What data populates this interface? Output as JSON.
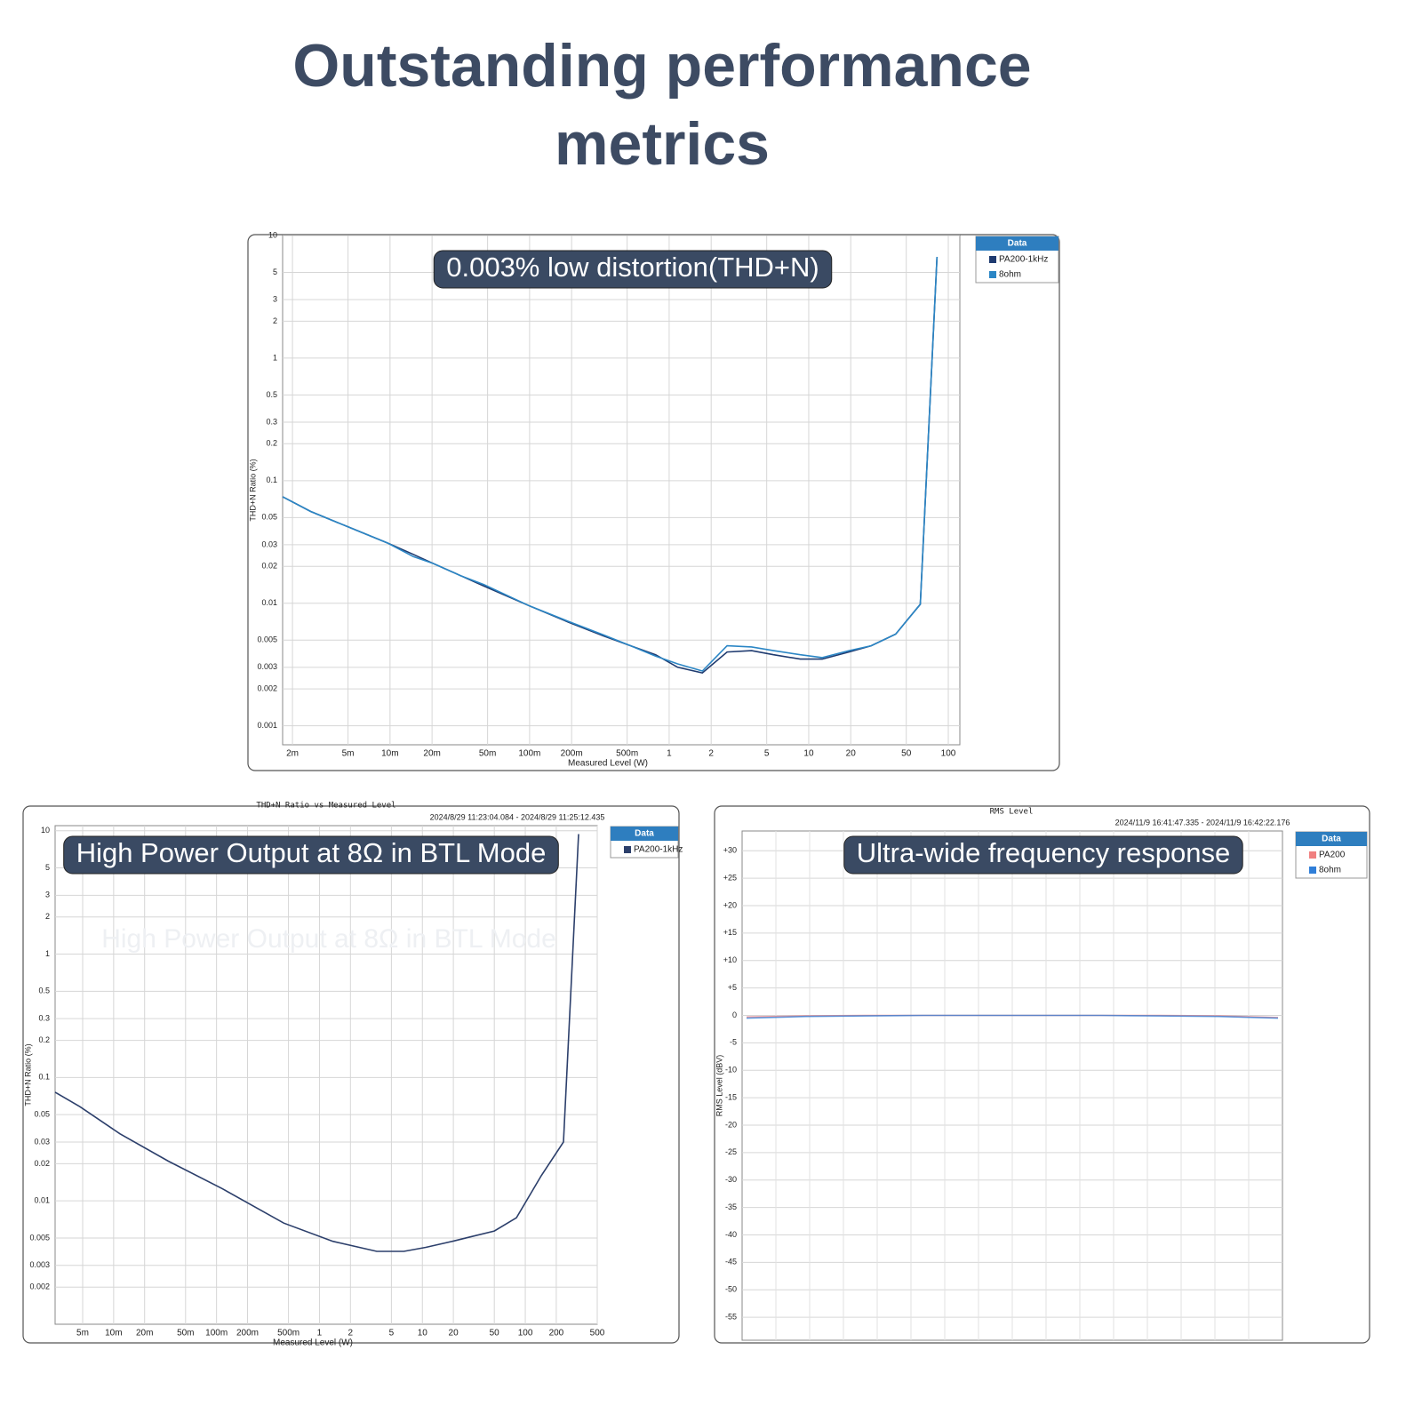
{
  "header": {
    "title": "Outstanding performance metrics"
  },
  "chart_data": [
    {
      "type": "line",
      "annotation": "0.003% low distortion(THD+N)",
      "x_label": "Measured Level (W)",
      "y_label": "THD+N Ratio (%)",
      "legend_title": "Data",
      "log_x": true,
      "log_y": true,
      "grid": true,
      "xlim": [
        0.0017,
        121
      ],
      "ylim": [
        0.0007,
        10
      ],
      "xticks": [
        {
          "value": 0.002,
          "label": "2m"
        },
        {
          "value": 0.005,
          "label": "5m"
        },
        {
          "value": 0.01,
          "label": "10m"
        },
        {
          "value": 0.02,
          "label": "20m"
        },
        {
          "value": 0.05,
          "label": "50m"
        },
        {
          "value": 0.1,
          "label": "100m"
        },
        {
          "value": 0.2,
          "label": "200m"
        },
        {
          "value": 0.5,
          "label": "500m"
        },
        1,
        2,
        5,
        10,
        20,
        50,
        100
      ],
      "yticks": [
        10,
        5,
        3,
        2,
        1,
        0.5,
        0.3,
        0.2,
        0.1,
        0.05,
        0.03,
        0.02,
        0.01,
        0.005,
        0.003,
        0.002,
        0.001
      ],
      "series": [
        {
          "name": "PA200-1kHz",
          "color": "#1f3b70",
          "x": [
            0.0017,
            0.0027,
            0.005,
            0.0096,
            0.0147,
            0.0206,
            0.032,
            0.047,
            0.1,
            0.19,
            0.34,
            0.53,
            0.8,
            1.15,
            1.73,
            2.6,
            3.9,
            5.6,
            8.7,
            12.5,
            19.4,
            28,
            42,
            63,
            83
          ],
          "values": [
            0.074,
            0.056,
            0.042,
            0.031,
            0.025,
            0.021,
            0.0168,
            0.0138,
            0.0095,
            0.007,
            0.0054,
            0.0045,
            0.0038,
            0.003,
            0.0027,
            0.004,
            0.0041,
            0.0038,
            0.0035,
            0.0035,
            0.004,
            0.0045,
            0.0056,
            0.0098,
            6.7
          ]
        },
        {
          "name": "8ohm",
          "color": "#2b86c5",
          "x": [
            0.0017,
            0.0027,
            0.005,
            0.0096,
            0.0147,
            0.0206,
            0.032,
            0.047,
            0.1,
            0.19,
            0.34,
            0.53,
            0.8,
            1.15,
            1.73,
            2.6,
            3.9,
            5.6,
            8.7,
            12.5,
            19.4,
            28,
            42,
            63,
            83
          ],
          "values": [
            0.074,
            0.056,
            0.042,
            0.031,
            0.024,
            0.021,
            0.0168,
            0.0142,
            0.0095,
            0.0071,
            0.0055,
            0.0045,
            0.0037,
            0.0032,
            0.0028,
            0.0045,
            0.0044,
            0.0041,
            0.0038,
            0.0036,
            0.0041,
            0.0045,
            0.0056,
            0.0098,
            6.7
          ]
        }
      ]
    },
    {
      "type": "line",
      "title": "THD+N Ratio vs Measured Level",
      "timestamp": "2024/8/29 11:23:04.084 -   2024/8/29 11:25:12.435",
      "annotation": "High Power Output at 8Ω in BTL Mode",
      "x_label": "Measured Level (W)",
      "y_label": "THD+N Ratio (%)",
      "legend_title": "Data",
      "log_x": true,
      "log_y": true,
      "grid": true,
      "xlim": [
        0.0027,
        500
      ],
      "ylim": [
        0.001,
        11
      ],
      "xticks": [
        {
          "value": 0.005,
          "label": "5m"
        },
        {
          "value": 0.01,
          "label": "10m"
        },
        {
          "value": 0.02,
          "label": "20m"
        },
        {
          "value": 0.05,
          "label": "50m"
        },
        {
          "value": 0.1,
          "label": "100m"
        },
        {
          "value": 0.2,
          "label": "200m"
        },
        {
          "value": 0.5,
          "label": "500m"
        },
        1,
        2,
        5,
        10,
        20,
        50,
        100,
        200,
        500
      ],
      "yticks": [
        10,
        5,
        3,
        2,
        1,
        0.5,
        0.3,
        0.2,
        0.1,
        0.05,
        0.03,
        0.02,
        0.01,
        0.005,
        0.003,
        0.002
      ],
      "series": [
        {
          "name": "PA200-1kHz",
          "color": "#2c3f6b",
          "x": [
            0.0027,
            0.0047,
            0.0115,
            0.034,
            0.113,
            0.45,
            1.35,
            3.6,
            6.6,
            10.8,
            19.6,
            29,
            50,
            82,
            143,
            235,
            329
          ],
          "values": [
            0.076,
            0.058,
            0.035,
            0.021,
            0.0126,
            0.0066,
            0.0047,
            0.0039,
            0.0039,
            0.0042,
            0.0047,
            0.0051,
            0.0057,
            0.0073,
            0.016,
            0.03,
            9.4
          ]
        }
      ]
    },
    {
      "type": "line",
      "title": "RMS Level",
      "timestamp": "2024/11/9 16:41:47.335 -   2024/11/9 16:42:22.176",
      "annotation": "Ultra-wide frequency response",
      "y_label": "RMS Level (dBV)",
      "legend_title": "Data",
      "log_x": false,
      "log_y": false,
      "grid": true,
      "ylim": [
        -59.2,
        33.6
      ],
      "yticks": [
        {
          "value": 30,
          "label": "+30"
        },
        {
          "value": 25,
          "label": "+25"
        },
        {
          "value": 20,
          "label": "+20"
        },
        {
          "value": 15,
          "label": "+15"
        },
        {
          "value": 10,
          "label": "+10"
        },
        {
          "value": 5,
          "label": "+5"
        },
        0,
        -5,
        -10,
        -15,
        -20,
        -25,
        -30,
        -35,
        -40,
        -45,
        -50,
        -55
      ],
      "categories": [
        null,
        null,
        null,
        null,
        null,
        null,
        null,
        null,
        null,
        null
      ],
      "series": [
        {
          "name": "PA200",
          "color": "#f08080",
          "values": [
            -0.3,
            -0.1,
            0,
            0,
            0,
            0,
            0,
            0,
            -0.1,
            -0.4
          ]
        },
        {
          "name": "8ohm",
          "color": "#2f7ed8",
          "values": [
            -0.5,
            -0.2,
            -0.1,
            0,
            0,
            0,
            0,
            -0.1,
            -0.2,
            -0.5
          ]
        }
      ]
    }
  ]
}
